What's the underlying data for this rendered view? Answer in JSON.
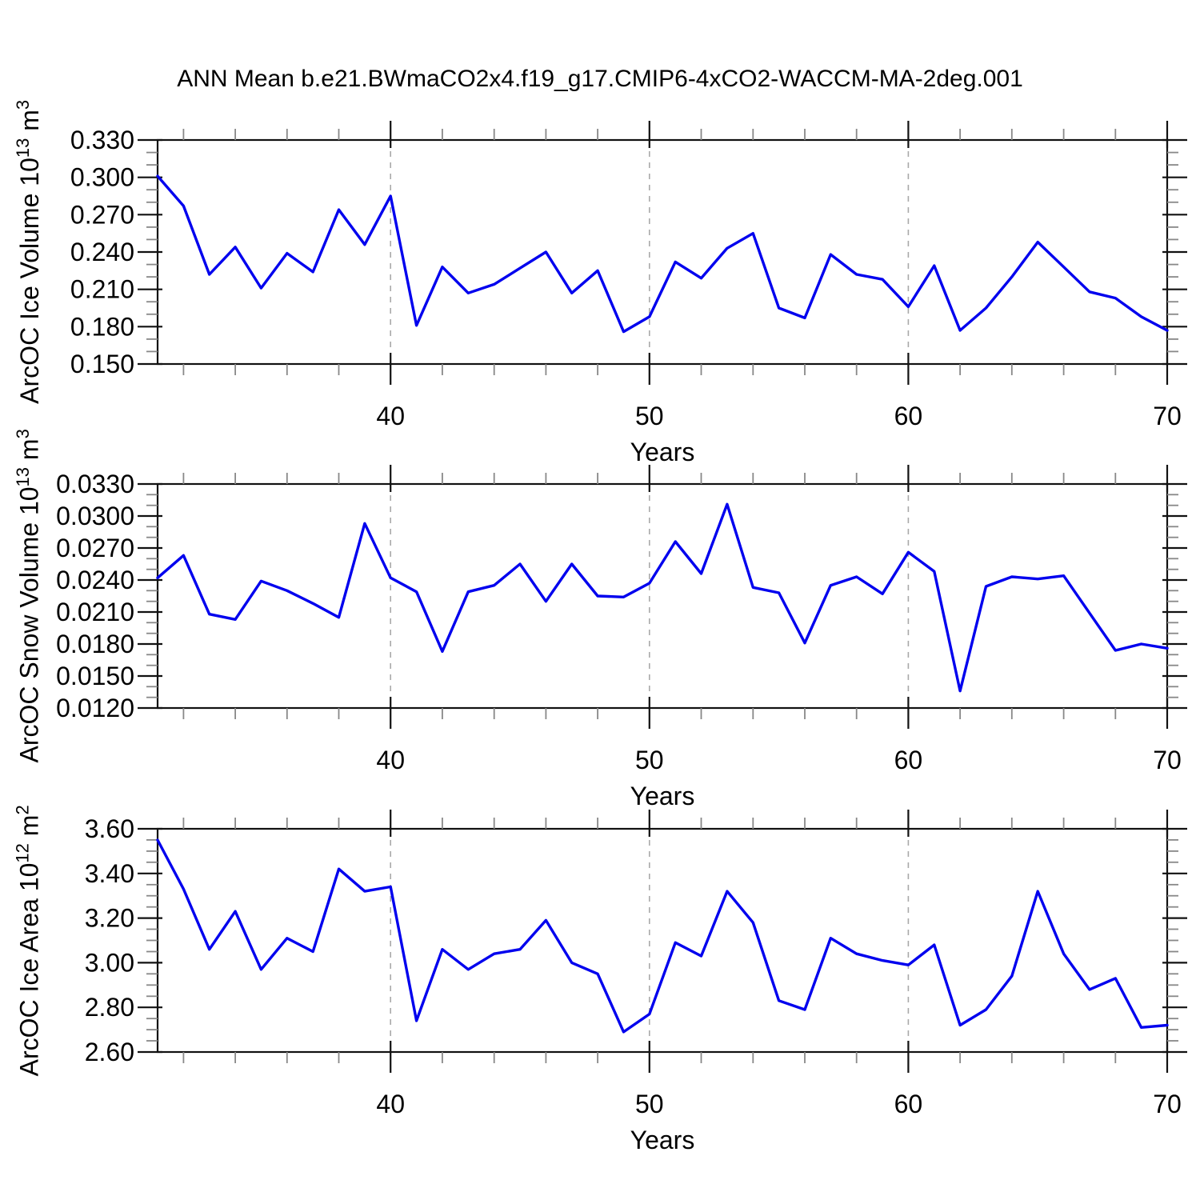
{
  "title": "ANN Mean b.e21.BWmaCO2x4.f19_g17.CMIP6-4xCO2-WACCM-MA-2deg.001",
  "colors": {
    "line": "#0000EE",
    "grid": "#A9A9A9",
    "axis": "#111111",
    "minor_tick": "#888888",
    "text": "#000000"
  },
  "chart_data": [
    {
      "type": "line",
      "name": "arcoc-ice-volume",
      "ylabel": {
        "prefix": "ArcOC Ice Volume 10",
        "sup1": "13",
        "mid": " m",
        "sup2": "3"
      },
      "xlabel": "Years",
      "xlim": [
        31,
        70
      ],
      "ylim": [
        0.15,
        0.33
      ],
      "ytick_values": [
        0.15,
        0.18,
        0.21,
        0.24,
        0.27,
        0.3,
        0.33
      ],
      "ytick_labels": [
        "0.150",
        "0.180",
        "0.210",
        "0.240",
        "0.270",
        "0.300",
        "0.330"
      ],
      "yminor_step": 0.01,
      "xticks": [
        40,
        50,
        60,
        70
      ],
      "xtick_labels": [
        "40",
        "50",
        "60",
        "70"
      ],
      "xminor_interval": 2,
      "grid_x": [
        40,
        50,
        60
      ],
      "x": [
        31,
        32,
        33,
        34,
        35,
        36,
        37,
        38,
        39,
        40,
        41,
        42,
        43,
        44,
        45,
        46,
        47,
        48,
        49,
        50,
        51,
        52,
        53,
        54,
        55,
        56,
        57,
        58,
        59,
        60,
        61,
        62,
        63,
        64,
        65,
        66,
        67,
        68,
        69,
        70
      ],
      "values": [
        0.301,
        0.277,
        0.222,
        0.244,
        0.211,
        0.239,
        0.224,
        0.274,
        0.246,
        0.285,
        0.181,
        0.228,
        0.207,
        0.214,
        0.227,
        0.24,
        0.207,
        0.225,
        0.176,
        0.188,
        0.232,
        0.219,
        0.243,
        0.255,
        0.195,
        0.187,
        0.238,
        0.222,
        0.218,
        0.196,
        0.229,
        0.177,
        0.195,
        0.22,
        0.248,
        0.228,
        0.208,
        0.203,
        0.188,
        0.177
      ]
    },
    {
      "type": "line",
      "name": "arcoc-snow-volume",
      "ylabel": {
        "prefix": "ArcOC Snow Volume 10",
        "sup1": "13",
        "mid": " m",
        "sup2": "3"
      },
      "xlabel": "Years",
      "xlim": [
        31,
        70
      ],
      "ylim": [
        0.012,
        0.033
      ],
      "ytick_values": [
        0.012,
        0.015,
        0.018,
        0.021,
        0.024,
        0.027,
        0.03,
        0.033
      ],
      "ytick_labels": [
        "0.0120",
        "0.0150",
        "0.0180",
        "0.0210",
        "0.0240",
        "0.0270",
        "0.0300",
        "0.0330"
      ],
      "yminor_step": 0.001,
      "xticks": [
        40,
        50,
        60,
        70
      ],
      "xtick_labels": [
        "40",
        "50",
        "60",
        "70"
      ],
      "xminor_interval": 2,
      "grid_x": [
        40,
        50,
        60
      ],
      "x": [
        31,
        32,
        33,
        34,
        35,
        36,
        37,
        38,
        39,
        40,
        41,
        42,
        43,
        44,
        45,
        46,
        47,
        48,
        49,
        50,
        51,
        52,
        53,
        54,
        55,
        56,
        57,
        58,
        59,
        60,
        61,
        62,
        63,
        64,
        65,
        66,
        67,
        68,
        69,
        70
      ],
      "values": [
        0.0242,
        0.0263,
        0.0208,
        0.0203,
        0.0239,
        0.023,
        0.0218,
        0.0205,
        0.0293,
        0.0242,
        0.0229,
        0.0173,
        0.0229,
        0.0235,
        0.0255,
        0.022,
        0.0255,
        0.0225,
        0.0224,
        0.0237,
        0.0276,
        0.0246,
        0.0311,
        0.0233,
        0.0228,
        0.0181,
        0.0235,
        0.0243,
        0.0227,
        0.0266,
        0.0248,
        0.0136,
        0.0234,
        0.0243,
        0.0241,
        0.0244,
        0.0209,
        0.0174,
        0.018,
        0.0176
      ]
    },
    {
      "type": "line",
      "name": "arcoc-ice-area",
      "ylabel": {
        "prefix": "ArcOC Ice Area 10",
        "sup1": "12",
        "mid": " m",
        "sup2": "2"
      },
      "xlabel": "Years",
      "xlim": [
        31,
        70
      ],
      "ylim": [
        2.6,
        3.6
      ],
      "ytick_values": [
        2.6,
        2.8,
        3.0,
        3.2,
        3.4,
        3.6
      ],
      "ytick_labels": [
        "2.60",
        "2.80",
        "3.00",
        "3.20",
        "3.40",
        "3.60"
      ],
      "yminor_step": 0.05,
      "xticks": [
        40,
        50,
        60,
        70
      ],
      "xtick_labels": [
        "40",
        "50",
        "60",
        "70"
      ],
      "xminor_interval": 2,
      "grid_x": [
        40,
        50,
        60
      ],
      "x": [
        31,
        32,
        33,
        34,
        35,
        36,
        37,
        38,
        39,
        40,
        41,
        42,
        43,
        44,
        45,
        46,
        47,
        48,
        49,
        50,
        51,
        52,
        53,
        54,
        55,
        56,
        57,
        58,
        59,
        60,
        61,
        62,
        63,
        64,
        65,
        66,
        67,
        68,
        69,
        70
      ],
      "values": [
        3.55,
        3.33,
        3.06,
        3.23,
        2.97,
        3.11,
        3.05,
        3.42,
        3.32,
        3.34,
        2.74,
        3.06,
        2.97,
        3.04,
        3.06,
        3.19,
        3.0,
        2.95,
        2.69,
        2.77,
        3.09,
        3.03,
        3.32,
        3.18,
        2.83,
        2.79,
        3.11,
        3.04,
        3.01,
        2.99,
        3.08,
        2.72,
        2.79,
        2.94,
        3.32,
        3.04,
        2.88,
        2.93,
        2.71,
        2.72
      ]
    }
  ]
}
